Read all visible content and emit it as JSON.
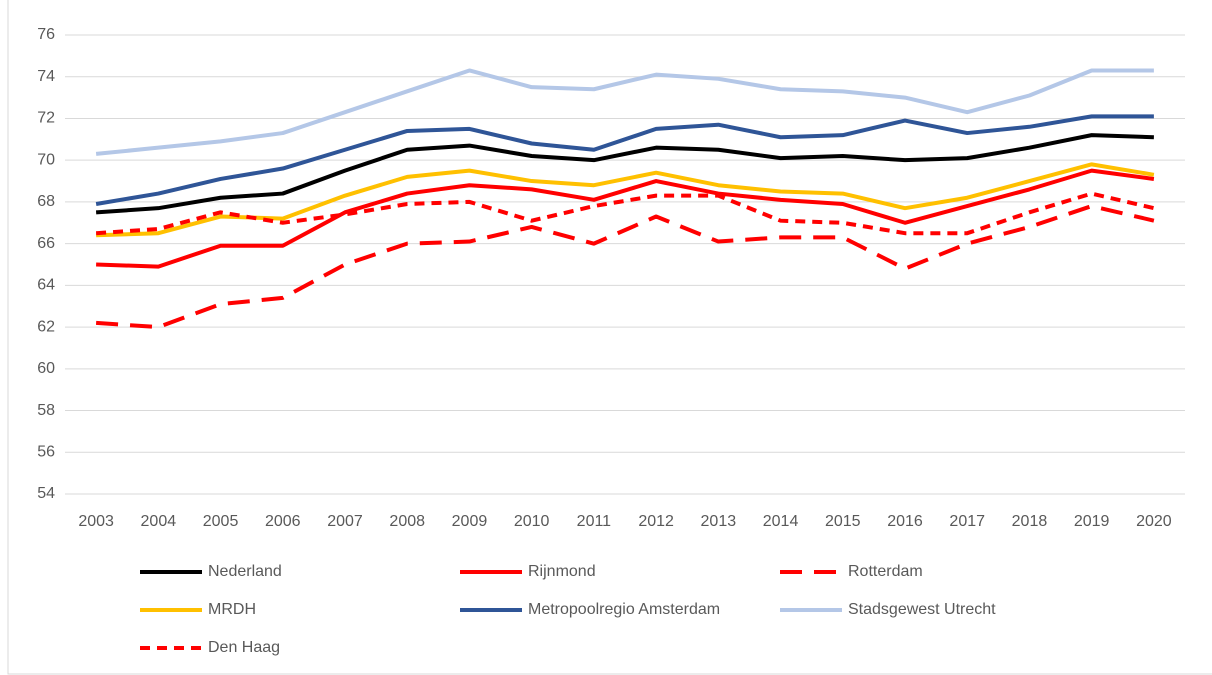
{
  "chart_data": {
    "type": "line",
    "categories": [
      "2003",
      "2004",
      "2005",
      "2006",
      "2007",
      "2008",
      "2009",
      "2010",
      "2011",
      "2012",
      "2013",
      "2014",
      "2015",
      "2016",
      "2017",
      "2018",
      "2019",
      "2020"
    ],
    "series": [
      {
        "name": "Nederland",
        "color": "#000000",
        "dash": "solid",
        "values": [
          67.5,
          67.7,
          68.2,
          68.4,
          69.5,
          70.5,
          70.7,
          70.2,
          70.0,
          70.6,
          70.5,
          70.1,
          70.2,
          70.0,
          70.1,
          70.6,
          71.2,
          71.1
        ]
      },
      {
        "name": "Rijnmond",
        "color": "#ff0000",
        "dash": "solid",
        "values": [
          65.0,
          64.9,
          65.9,
          65.9,
          67.5,
          68.4,
          68.8,
          68.6,
          68.1,
          69.0,
          68.4,
          68.1,
          67.9,
          67.0,
          67.8,
          68.6,
          69.5,
          69.1
        ]
      },
      {
        "name": "Rotterdam",
        "color": "#ff0000",
        "dash": "long",
        "values": [
          62.2,
          62.0,
          63.1,
          63.4,
          65.0,
          66.0,
          66.1,
          66.8,
          66.0,
          67.3,
          66.1,
          66.3,
          66.3,
          64.8,
          66.0,
          66.8,
          67.8,
          67.1
        ]
      },
      {
        "name": "MRDH",
        "color": "#ffc000",
        "dash": "solid",
        "values": [
          66.4,
          66.5,
          67.3,
          67.2,
          68.3,
          69.2,
          69.5,
          69.0,
          68.8,
          69.4,
          68.8,
          68.5,
          68.4,
          67.7,
          68.2,
          69.0,
          69.8,
          69.3
        ]
      },
      {
        "name": "Metropoolregio Amsterdam",
        "color": "#2f5597",
        "dash": "solid",
        "values": [
          67.9,
          68.4,
          69.1,
          69.6,
          70.5,
          71.4,
          71.5,
          70.8,
          70.5,
          71.5,
          71.7,
          71.1,
          71.2,
          71.9,
          71.3,
          71.6,
          72.1,
          72.1
        ]
      },
      {
        "name": "Stadsgewest Utrecht",
        "color": "#b4c7e7",
        "dash": "solid",
        "values": [
          70.3,
          70.6,
          70.9,
          71.3,
          72.3,
          73.3,
          74.3,
          73.5,
          73.4,
          74.1,
          73.9,
          73.4,
          73.3,
          73.0,
          72.3,
          73.1,
          74.3,
          74.3
        ]
      },
      {
        "name": "Den Haag",
        "color": "#ff0000",
        "dash": "short",
        "values": [
          66.5,
          66.7,
          67.5,
          67.0,
          67.4,
          67.9,
          68.0,
          67.1,
          67.8,
          68.3,
          68.3,
          67.1,
          67.0,
          66.5,
          66.5,
          67.5,
          68.4,
          67.7
        ]
      }
    ],
    "ylim": [
      54,
      76
    ],
    "yticks": [
      54,
      56,
      58,
      60,
      62,
      64,
      66,
      68,
      70,
      72,
      74,
      76
    ],
    "grid": true,
    "legend": "bottom"
  }
}
